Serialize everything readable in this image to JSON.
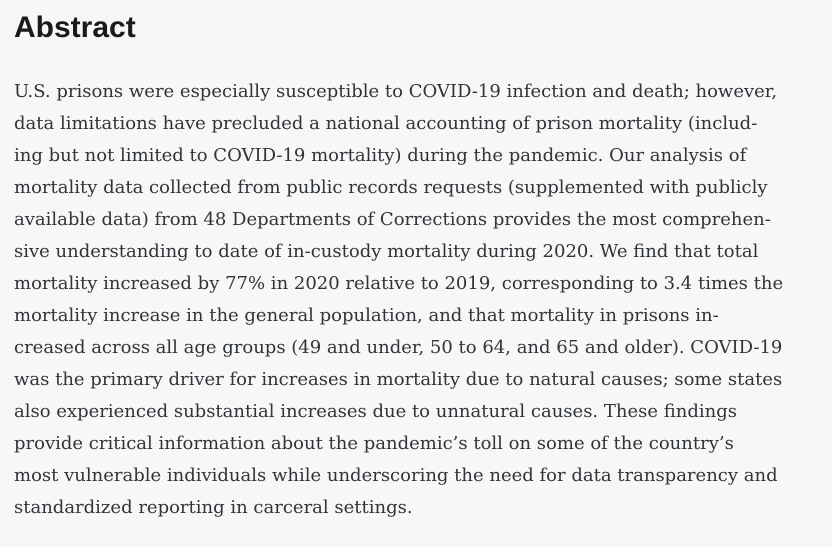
{
  "heading": {
    "label": "Abstract"
  },
  "abstract": {
    "lines": [
      "U.S. prisons were especially susceptible to COVID-19 infection and death; however,",
      "data limitations have precluded a national accounting of prison mortality (includ-",
      "ing but not limited to COVID-19 mortality) during the pandemic. Our analysis of",
      "mortality data collected from public records requests (supplemented with publicly",
      "available data) from 48 Departments of Corrections provides the most comprehen-",
      "sive understanding to date of in-custody mortality during 2020. We find that total",
      "mortality increased by 77% in 2020 relative to 2019, corresponding to 3.4 times the",
      "mortality increase in the general population, and that mortality in prisons in-",
      "creased across all age groups (49 and under, 50 to 64, and 65 and older). COVID-19",
      "was the primary driver for increases in mortality due to natural causes; some states",
      "also experienced substantial increases due to unnatural causes. These findings",
      "provide critical information about the pandemic’s toll on some of the country’s",
      "most vulnerable individuals while underscoring the need for data transparency and",
      "standardized reporting in carceral settings."
    ]
  },
  "colors": {
    "background": "#f7f7f7",
    "heading_text": "#1a1a1a",
    "body_text": "#2f3439"
  }
}
